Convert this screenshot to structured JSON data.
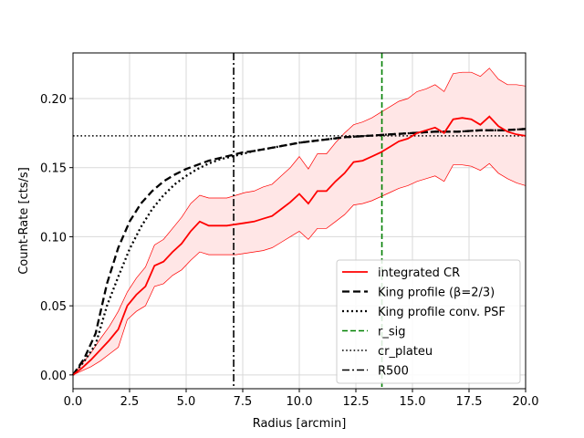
{
  "chart_data": {
    "type": "line",
    "xlabel": "Radius [arcmin]",
    "ylabel": "Count-Rate [cts/s]",
    "xlim": [
      0,
      20
    ],
    "ylim": [
      -0.01,
      0.233
    ],
    "xticks": [
      0.0,
      2.5,
      5.0,
      7.5,
      10.0,
      12.5,
      15.0,
      17.5,
      20.0
    ],
    "xtick_labels": [
      "0.0",
      "2.5",
      "5.0",
      "7.5",
      "10.0",
      "12.5",
      "15.0",
      "17.5",
      "20.0"
    ],
    "yticks": [
      0.0,
      0.05,
      0.1,
      0.15,
      0.2
    ],
    "ytick_labels": [
      "0.00",
      "0.05",
      "0.10",
      "0.15",
      "0.20"
    ],
    "grid": true,
    "legend_position": "bottom-right",
    "colors": {
      "integrated": "#ff0000",
      "band_fill": "#ffe6e6",
      "king": "#000000",
      "r_sig": "#008000"
    },
    "series": [
      {
        "name": "integrated CR",
        "style": "solid-red",
        "x": [
          0.0,
          0.4,
          0.8,
          1.2,
          1.6,
          2.0,
          2.4,
          2.8,
          3.2,
          3.6,
          4.0,
          4.4,
          4.8,
          5.2,
          5.6,
          6.0,
          6.4,
          6.8,
          7.2,
          7.6,
          8.0,
          8.4,
          8.8,
          9.2,
          9.6,
          10.0,
          10.4,
          10.8,
          11.2,
          11.6,
          12.0,
          12.4,
          12.8,
          13.2,
          13.6,
          14.0,
          14.4,
          14.8,
          15.2,
          15.6,
          16.0,
          16.4,
          16.8,
          17.2,
          17.6,
          18.0,
          18.4,
          18.8,
          19.2,
          19.6,
          20.0
        ],
        "y": [
          0.0,
          0.005,
          0.011,
          0.018,
          0.025,
          0.033,
          0.05,
          0.058,
          0.064,
          0.079,
          0.082,
          0.089,
          0.095,
          0.104,
          0.111,
          0.108,
          0.108,
          0.108,
          0.109,
          0.11,
          0.111,
          0.113,
          0.115,
          0.12,
          0.125,
          0.131,
          0.124,
          0.133,
          0.133,
          0.14,
          0.146,
          0.154,
          0.155,
          0.158,
          0.161,
          0.165,
          0.169,
          0.171,
          0.175,
          0.177,
          0.179,
          0.175,
          0.185,
          0.186,
          0.185,
          0.181,
          0.187,
          0.18,
          0.176,
          0.174,
          0.173
        ]
      },
      {
        "name": "King profile (β=2/3)",
        "style": "dashed-black",
        "x": [
          0.0,
          0.5,
          1.0,
          1.5,
          2.0,
          2.5,
          3.0,
          3.5,
          4.0,
          4.5,
          5.0,
          5.5,
          6.0,
          6.5,
          7.0,
          7.5,
          8.0,
          9.0,
          10.0,
          11.0,
          12.0,
          13.0,
          14.0,
          15.0,
          16.0,
          17.0,
          18.0,
          19.0,
          20.0
        ],
        "y": [
          0.0,
          0.012,
          0.03,
          0.066,
          0.092,
          0.111,
          0.124,
          0.133,
          0.14,
          0.145,
          0.149,
          0.152,
          0.155,
          0.157,
          0.159,
          0.161,
          0.162,
          0.165,
          0.168,
          0.17,
          0.172,
          0.173,
          0.174,
          0.175,
          0.176,
          0.176,
          0.177,
          0.177,
          0.178
        ]
      },
      {
        "name": "King profile conv. PSF",
        "style": "dotted-black",
        "x": [
          0.0,
          0.5,
          1.0,
          1.5,
          2.0,
          2.5,
          3.0,
          3.5,
          4.0,
          4.5,
          5.0,
          5.5,
          6.0,
          6.5,
          7.0,
          7.5,
          8.0,
          9.0,
          10.0,
          11.0,
          12.0,
          13.0,
          14.0,
          15.0,
          16.0,
          17.0,
          18.0,
          19.0,
          20.0
        ],
        "y": [
          0.0,
          0.01,
          0.022,
          0.05,
          0.071,
          0.091,
          0.107,
          0.12,
          0.13,
          0.138,
          0.144,
          0.149,
          0.153,
          0.156,
          0.158,
          0.16,
          0.162,
          0.165,
          0.168,
          0.17,
          0.172,
          0.173,
          0.174,
          0.175,
          0.176,
          0.176,
          0.177,
          0.177,
          0.178
        ]
      },
      {
        "name": "r_sig",
        "style": "dashed-green",
        "x_value": 13.65
      },
      {
        "name": "cr_plateu",
        "style": "dotted-black-thin",
        "y_value": 0.173
      },
      {
        "name": "R500",
        "style": "dashdot-black",
        "x_value": 7.1
      }
    ],
    "band": {
      "x": [
        0.0,
        0.4,
        0.8,
        1.2,
        1.6,
        2.0,
        2.4,
        2.8,
        3.2,
        3.6,
        4.0,
        4.4,
        4.8,
        5.2,
        5.6,
        6.0,
        6.4,
        6.8,
        7.2,
        7.6,
        8.0,
        8.4,
        8.8,
        9.2,
        9.6,
        10.0,
        10.4,
        10.8,
        11.2,
        11.6,
        12.0,
        12.4,
        12.8,
        13.2,
        13.6,
        14.0,
        14.4,
        14.8,
        15.2,
        15.6,
        16.0,
        16.4,
        16.8,
        17.2,
        17.6,
        18.0,
        18.4,
        18.8,
        19.2,
        19.6,
        20.0
      ],
      "lower": [
        0.0,
        0.003,
        0.006,
        0.01,
        0.015,
        0.02,
        0.04,
        0.046,
        0.05,
        0.064,
        0.066,
        0.072,
        0.076,
        0.083,
        0.089,
        0.087,
        0.087,
        0.087,
        0.087,
        0.088,
        0.089,
        0.09,
        0.092,
        0.096,
        0.1,
        0.104,
        0.098,
        0.106,
        0.106,
        0.111,
        0.116,
        0.123,
        0.124,
        0.126,
        0.129,
        0.132,
        0.135,
        0.137,
        0.14,
        0.142,
        0.144,
        0.14,
        0.152,
        0.152,
        0.151,
        0.148,
        0.153,
        0.146,
        0.142,
        0.139,
        0.137
      ],
      "upper": [
        0.0,
        0.008,
        0.016,
        0.026,
        0.035,
        0.046,
        0.06,
        0.07,
        0.078,
        0.094,
        0.098,
        0.106,
        0.114,
        0.124,
        0.13,
        0.128,
        0.128,
        0.128,
        0.13,
        0.132,
        0.133,
        0.136,
        0.138,
        0.144,
        0.15,
        0.158,
        0.149,
        0.16,
        0.16,
        0.168,
        0.175,
        0.181,
        0.183,
        0.186,
        0.19,
        0.194,
        0.198,
        0.2,
        0.205,
        0.207,
        0.21,
        0.205,
        0.218,
        0.219,
        0.219,
        0.216,
        0.222,
        0.214,
        0.21,
        0.21,
        0.209
      ]
    }
  }
}
